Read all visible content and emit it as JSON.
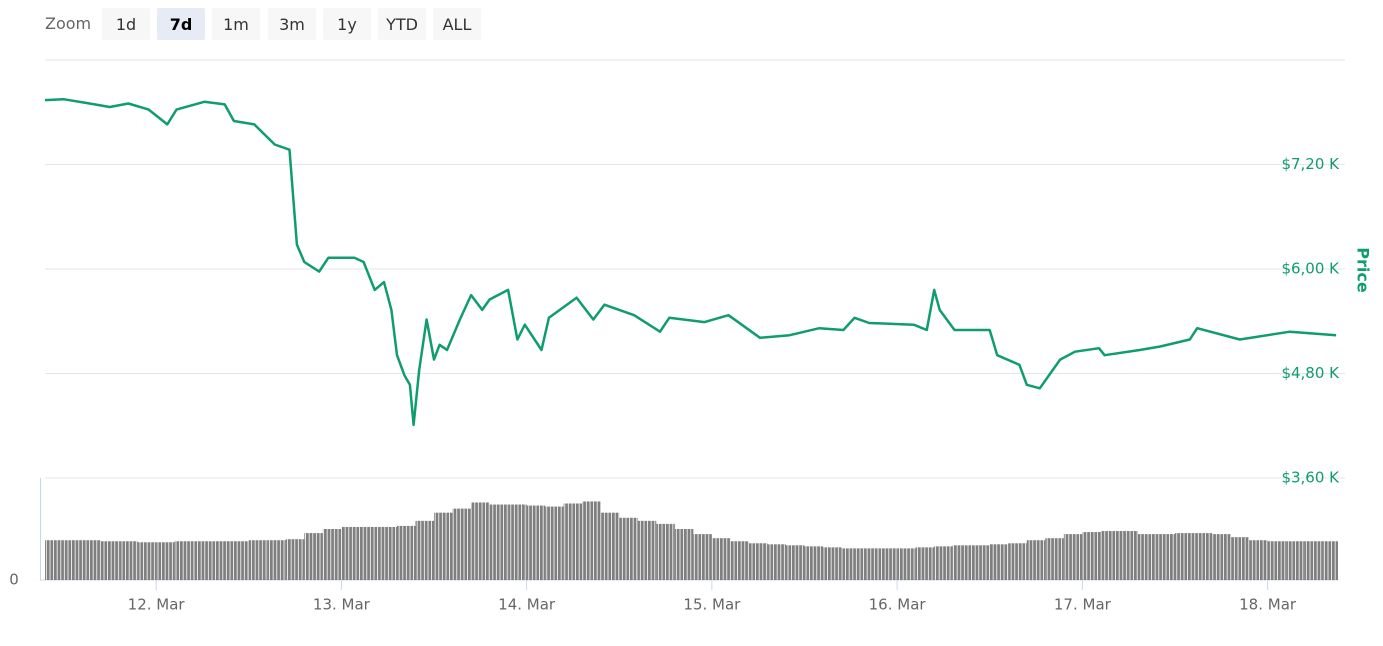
{
  "range_selector": {
    "label": "Zoom",
    "buttons": [
      "1d",
      "7d",
      "1m",
      "3m",
      "1y",
      "YTD",
      "ALL"
    ],
    "selected": 1
  },
  "chart_data": [
    {
      "type": "line",
      "y_label": "Price",
      "color": "#0f9d6e",
      "xlim": [
        11.4,
        18.38
      ],
      "ylim": [
        3600,
        8400
      ],
      "yticks": [
        {
          "value": 3600,
          "label": "$3,60 K"
        },
        {
          "value": 4800,
          "label": "$4,80 K"
        },
        {
          "value": 6000,
          "label": "$6,00 K"
        },
        {
          "value": 7200,
          "label": "$7,20 K"
        }
      ],
      "grid": true,
      "x": [
        11.4,
        11.5,
        11.64,
        11.75,
        11.85,
        11.96,
        12.06,
        12.11,
        12.26,
        12.37,
        12.42,
        12.53,
        12.64,
        12.72,
        12.76,
        12.8,
        12.88,
        12.93,
        13.07,
        13.12,
        13.18,
        13.23,
        13.27,
        13.3,
        13.34,
        13.37,
        13.39,
        13.42,
        13.46,
        13.5,
        13.53,
        13.57,
        13.64,
        13.7,
        13.76,
        13.8,
        13.9,
        13.95,
        13.99,
        14.08,
        14.12,
        14.27,
        14.36,
        14.42,
        14.58,
        14.72,
        14.77,
        14.96,
        15.09,
        15.26,
        15.42,
        15.58,
        15.71,
        15.77,
        15.85,
        16.09,
        16.16,
        16.2,
        16.23,
        16.31,
        16.5,
        16.54,
        16.66,
        16.7,
        16.77,
        16.88,
        16.96,
        17.09,
        17.12,
        17.31,
        17.42,
        17.58,
        17.62,
        17.85,
        18.12,
        18.37
      ],
      "values": [
        7940,
        7950,
        7900,
        7860,
        7900,
        7830,
        7660,
        7830,
        7920,
        7890,
        7700,
        7660,
        7430,
        7370,
        6280,
        6080,
        5970,
        6130,
        6130,
        6080,
        5760,
        5850,
        5530,
        5010,
        4780,
        4670,
        4210,
        4840,
        5420,
        4960,
        5130,
        5070,
        5420,
        5700,
        5530,
        5650,
        5760,
        5190,
        5360,
        5070,
        5440,
        5670,
        5420,
        5590,
        5470,
        5280,
        5440,
        5390,
        5470,
        5210,
        5240,
        5320,
        5300,
        5440,
        5380,
        5360,
        5300,
        5760,
        5530,
        5300,
        5300,
        5010,
        4900,
        4670,
        4630,
        4960,
        5050,
        5090,
        5010,
        5070,
        5110,
        5190,
        5320,
        5190,
        5280,
        5240
      ]
    },
    {
      "type": "bar",
      "color": "#7f7f7f",
      "xlim": [
        11.4,
        18.38
      ],
      "xticks": [
        {
          "value": 12,
          "label": "12. Mar"
        },
        {
          "value": 13,
          "label": "13. Mar"
        },
        {
          "value": 14,
          "label": "14. Mar"
        },
        {
          "value": 15,
          "label": "15. Mar"
        },
        {
          "value": 16,
          "label": "16. Mar"
        },
        {
          "value": 17,
          "label": "17. Mar"
        },
        {
          "value": 18,
          "label": "18. Mar"
        }
      ],
      "ylim": [
        0,
        100
      ],
      "yticks": [
        0
      ],
      "x": [
        11.4,
        11.5,
        11.6,
        11.7,
        11.8,
        11.9,
        12.0,
        12.1,
        12.2,
        12.3,
        12.4,
        12.5,
        12.6,
        12.7,
        12.8,
        12.9,
        13.0,
        13.1,
        13.2,
        13.3,
        13.4,
        13.5,
        13.6,
        13.7,
        13.8,
        13.9,
        14.0,
        14.1,
        14.2,
        14.3,
        14.4,
        14.5,
        14.6,
        14.7,
        14.8,
        14.9,
        15.0,
        15.1,
        15.2,
        15.3,
        15.4,
        15.5,
        15.6,
        15.7,
        15.8,
        15.9,
        16.0,
        16.1,
        16.2,
        16.3,
        16.4,
        16.5,
        16.6,
        16.7,
        16.8,
        16.9,
        17.0,
        17.1,
        17.2,
        17.3,
        17.4,
        17.5,
        17.6,
        17.7,
        17.8,
        17.9,
        18.0,
        18.1,
        18.2,
        18.3
      ],
      "values": [
        39,
        39,
        39,
        38,
        38,
        37,
        37,
        38,
        38,
        38,
        38,
        39,
        39,
        40,
        46,
        50,
        52,
        52,
        52,
        53,
        58,
        66,
        70,
        76,
        74,
        74,
        73,
        72,
        75,
        77,
        66,
        61,
        58,
        55,
        50,
        45,
        41,
        38,
        36,
        35,
        34,
        33,
        32,
        31,
        31,
        31,
        31,
        32,
        33,
        34,
        34,
        35,
        36,
        39,
        41,
        45,
        47,
        48,
        48,
        45,
        45,
        46,
        46,
        45,
        42,
        39,
        38,
        38,
        38,
        38
      ]
    }
  ]
}
